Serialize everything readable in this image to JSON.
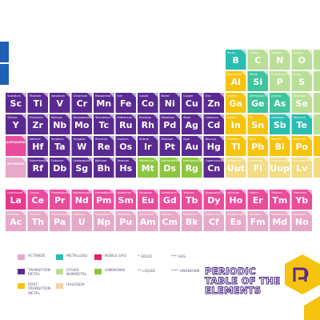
{
  "table": {
    "p_block": [
      [
        {
          "symbol": "B",
          "name": "Boron",
          "color": "#2bbdb0"
        },
        {
          "symbol": "C",
          "name": "Carbon",
          "color": "#b9df96"
        },
        {
          "symbol": "N",
          "name": "Nitrogen",
          "color": "#b9df96"
        },
        {
          "symbol": "O",
          "name": "Oxygen",
          "color": "#b9df96"
        }
      ],
      [
        {
          "symbol": "Al",
          "name": "Aluminium",
          "color": "#f6c40e"
        },
        {
          "symbol": "Si",
          "name": "Silicon",
          "color": "#3fc49c"
        },
        {
          "symbol": "P",
          "name": "Phosphorus",
          "color": "#b9df96"
        },
        {
          "symbol": "S",
          "name": "Sulfur",
          "color": "#b9df96"
        }
      ],
      [
        {
          "symbol": "Ga",
          "name": "Gallium",
          "color": "#f6c40e"
        },
        {
          "symbol": "Ge",
          "name": "Germanium",
          "color": "#3fc49c"
        },
        {
          "symbol": "As",
          "name": "Arsenic",
          "color": "#3fc49c"
        },
        {
          "symbol": "Se",
          "name": "Selenium",
          "color": "#b9df96"
        }
      ],
      [
        {
          "symbol": "In",
          "name": "Indium",
          "color": "#f6c40e"
        },
        {
          "symbol": "Sn",
          "name": "Tin",
          "color": "#f6c40e"
        },
        {
          "symbol": "Sb",
          "name": "Antimony",
          "color": "#2bbdb0"
        },
        {
          "symbol": "Te",
          "name": "Tellurium",
          "color": "#2bbdb0"
        }
      ],
      [
        {
          "symbol": "Tl",
          "name": "Thallium",
          "color": "#f6c40e"
        },
        {
          "symbol": "Pb",
          "name": "Lead",
          "color": "#f6c40e"
        },
        {
          "symbol": "Bi",
          "name": "Bismuth",
          "color": "#f6c40e"
        },
        {
          "symbol": "Po",
          "name": "Polonium",
          "color": "#f6c40e"
        }
      ],
      [
        {
          "symbol": "Uut",
          "name": "Ununtrium",
          "color": "#f3dc82"
        },
        {
          "symbol": "Fl",
          "name": "Flerovium",
          "color": "#f3dc82"
        },
        {
          "symbol": "Uup",
          "name": "Ununpentium",
          "color": "#f3dc82"
        },
        {
          "symbol": "Lv",
          "name": "Livermorium",
          "color": "#f3dc82"
        }
      ]
    ],
    "d_block": [
      [
        {
          "symbol": "Sc",
          "name": "Scandium",
          "color": "#5a2a91"
        },
        {
          "symbol": "Ti",
          "name": "Titanium",
          "color": "#5a2a91"
        },
        {
          "symbol": "V",
          "name": "Vanadium",
          "color": "#5a2a91"
        },
        {
          "symbol": "Cr",
          "name": "Chromium",
          "color": "#5a2a91"
        },
        {
          "symbol": "Mn",
          "name": "Manganese",
          "color": "#5a2a91"
        },
        {
          "symbol": "Fe",
          "name": "Iron",
          "color": "#5a2a91"
        },
        {
          "symbol": "Co",
          "name": "Cobalt",
          "color": "#5a2a91"
        },
        {
          "symbol": "Ni",
          "name": "Nickel",
          "color": "#5a2a91"
        },
        {
          "symbol": "Cu",
          "name": "Copper",
          "color": "#5a2a91"
        },
        {
          "symbol": "Zn",
          "name": "Zinc",
          "color": "#5a2a91"
        }
      ],
      [
        {
          "symbol": "Y",
          "name": "Yttrium",
          "color": "#5a2a91"
        },
        {
          "symbol": "Zr",
          "name": "Zirconium",
          "color": "#5a2a91"
        },
        {
          "symbol": "Nb",
          "name": "Niobium",
          "color": "#5a2a91"
        },
        {
          "symbol": "Mo",
          "name": "Molybdenum",
          "color": "#5a2a91"
        },
        {
          "symbol": "Tc",
          "name": "Technetium",
          "color": "#5a2a91"
        },
        {
          "symbol": "Ru",
          "name": "Ruthenium",
          "color": "#5a2a91"
        },
        {
          "symbol": "Rh",
          "name": "Rhodium",
          "color": "#5a2a91"
        },
        {
          "symbol": "Pd",
          "name": "Palladium",
          "color": "#5a2a91"
        },
        {
          "symbol": "Ag",
          "name": "Silver",
          "color": "#5a2a91"
        },
        {
          "symbol": "Cd",
          "name": "Cadmium",
          "color": "#5a2a91"
        }
      ],
      [
        {
          "symbol": "LANTHANIDES",
          "name": "",
          "color": "#ea4c9c"
        },
        {
          "symbol": "Hf",
          "name": "Hafnium",
          "color": "#5a2a91"
        },
        {
          "symbol": "Ta",
          "name": "Tantalum",
          "color": "#5a2a91"
        },
        {
          "symbol": "W",
          "name": "Tungsten",
          "color": "#5a2a91"
        },
        {
          "symbol": "Re",
          "name": "Rhenium",
          "color": "#5a2a91"
        },
        {
          "symbol": "Os",
          "name": "Osmium",
          "color": "#5a2a91"
        },
        {
          "symbol": "Ir",
          "name": "Iridium",
          "color": "#5a2a91"
        },
        {
          "symbol": "Pt",
          "name": "Platinum",
          "color": "#5a2a91"
        },
        {
          "symbol": "Au",
          "name": "Gold",
          "color": "#5a2a91"
        },
        {
          "symbol": "Hg",
          "name": "Mercury",
          "color": "#5a2a91"
        }
      ],
      [
        {
          "symbol": "ACTINIDES",
          "name": "",
          "color": "#e6a9c9"
        },
        {
          "symbol": "Rf",
          "name": "Rutherfordium",
          "color": "#5a2a91"
        },
        {
          "symbol": "Db",
          "name": "Dubnium",
          "color": "#5a2a91"
        },
        {
          "symbol": "Sg",
          "name": "Seaborgium",
          "color": "#5a2a91"
        },
        {
          "symbol": "Bh",
          "name": "Bohrium",
          "color": "#5a2a91"
        },
        {
          "symbol": "Hs",
          "name": "Hassium",
          "color": "#5a2a91"
        },
        {
          "symbol": "Mt",
          "name": "Meitnerium",
          "color": "#8cc63f"
        },
        {
          "symbol": "Ds",
          "name": "Darmstadtium",
          "color": "#8cc63f"
        },
        {
          "symbol": "Rg",
          "name": "Roentgenium",
          "color": "#8cc63f"
        },
        {
          "symbol": "Cn",
          "name": "Copernicium",
          "color": "#5a2a91"
        }
      ]
    ],
    "f_block": [
      [
        {
          "symbol": "La",
          "name": "Lanthanum",
          "color": "#e8378f"
        },
        {
          "symbol": "Ce",
          "name": "Cerium",
          "color": "#ea4c9c"
        },
        {
          "symbol": "Pr",
          "name": "Praseodymium",
          "color": "#ea4c9c"
        },
        {
          "symbol": "Nd",
          "name": "Neodymium",
          "color": "#ea4c9c"
        },
        {
          "symbol": "Pm",
          "name": "Promethium",
          "color": "#ea4c9c"
        },
        {
          "symbol": "Sm",
          "name": "Samarium",
          "color": "#ea4c9c"
        },
        {
          "symbol": "Eu",
          "name": "Europium",
          "color": "#ea4c9c"
        },
        {
          "symbol": "Gd",
          "name": "Gadolinium",
          "color": "#ea4c9c"
        },
        {
          "symbol": "Tb",
          "name": "Terbium",
          "color": "#ea4c9c"
        },
        {
          "symbol": "Dy",
          "name": "Dysprosium",
          "color": "#ea4c9c"
        },
        {
          "symbol": "Ho",
          "name": "Holmium",
          "color": "#ea4c9c"
        },
        {
          "symbol": "Er",
          "name": "Erbium",
          "color": "#ea4c9c"
        },
        {
          "symbol": "Tm",
          "name": "Thulium",
          "color": "#ea4c9c"
        },
        {
          "symbol": "Yb",
          "name": "Ytterbium",
          "color": "#ea4c9c"
        }
      ],
      [
        {
          "symbol": "Ac",
          "name": "Actinium",
          "color": "#e6a9c9"
        },
        {
          "symbol": "Th",
          "name": "Thorium",
          "color": "#e6a9c9"
        },
        {
          "symbol": "Pa",
          "name": "Protactinium",
          "color": "#e6a9c9"
        },
        {
          "symbol": "U",
          "name": "Uranium",
          "color": "#e6a9c9"
        },
        {
          "symbol": "Np",
          "name": "Neptunium",
          "color": "#e6a9c9"
        },
        {
          "symbol": "Pu",
          "name": "Plutonium",
          "color": "#e6a9c9"
        },
        {
          "symbol": "Am",
          "name": "Americium",
          "color": "#e6a9c9"
        },
        {
          "symbol": "Cm",
          "name": "Curium",
          "color": "#e6a9c9"
        },
        {
          "symbol": "Bk",
          "name": "Berkelium",
          "color": "#e6a9c9"
        },
        {
          "symbol": "Cf",
          "name": "Californium",
          "color": "#e6a9c9"
        },
        {
          "symbol": "Es",
          "name": "Einsteinium",
          "color": "#e6a9c9"
        },
        {
          "symbol": "Fm",
          "name": "Fermium",
          "color": "#e6a9c9"
        },
        {
          "symbol": "Md",
          "name": "Mendelevium",
          "color": "#e6a9c9"
        },
        {
          "symbol": "No",
          "name": "Nobelium",
          "color": "#e6a9c9"
        }
      ]
    ]
  },
  "legend": [
    {
      "label": "ACTINIDE",
      "color": "#e6a9c9"
    },
    {
      "label": "METALLOID",
      "color": "#2bbdb0"
    },
    {
      "label": "NOBLE GAS",
      "color": "#e0245e"
    },
    {
      "label": "TRANSITION METAL",
      "color": "#5a2a91"
    },
    {
      "label": "OTHER NONMETAL",
      "color": "#b9df96"
    },
    {
      "label": "UNKNOWN",
      "color": "#8cc63f"
    },
    {
      "label": "POST-TRANSITION METAL",
      "color": "#f6c40e"
    },
    {
      "label": "HALOGEN",
      "color": "#f8d0a8"
    }
  ],
  "states": [
    "* SOLID",
    "*** GAS",
    "** LIQUID",
    "**** UNKNOWN"
  ],
  "title": "PERIODIC TABLE OF THE ELEMENTS"
}
